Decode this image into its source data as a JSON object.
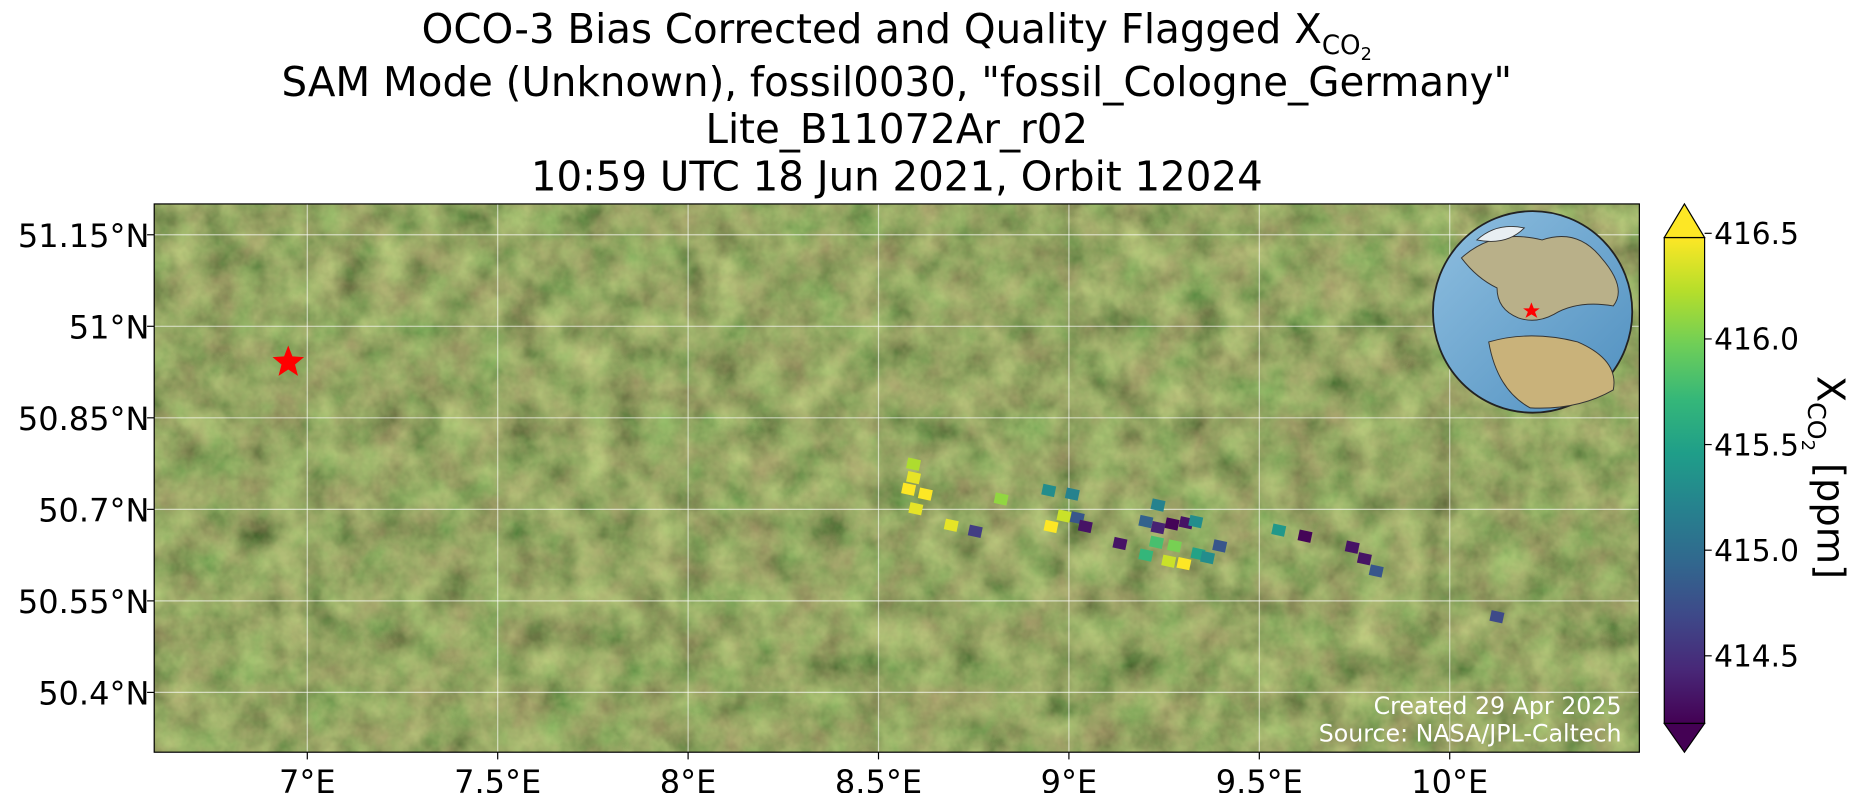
{
  "chart_data": {
    "type": "map",
    "title": {
      "line1": "OCO-3 Bias Corrected and Quality Flagged X",
      "line1_sub": "CO",
      "line1_subsub": "2",
      "line2": "SAM Mode (Unknown), fossil0030, \"fossil_Cologne_Germany\"",
      "line3": "Lite_B11072Ar_r02",
      "line4": "10:59 UTC 18 Jun 2021, Orbit 12024"
    },
    "xlim": [
      6.598,
      10.498
    ],
    "ylim": [
      50.302,
      51.2005
    ],
    "xticks": [
      {
        "value": 7,
        "label": "7°E"
      },
      {
        "value": 7.5,
        "label": "7.5°E"
      },
      {
        "value": 8,
        "label": "8°E"
      },
      {
        "value": 8.5,
        "label": "8.5°E"
      },
      {
        "value": 9,
        "label": "9°E"
      },
      {
        "value": 9.5,
        "label": "9.5°E"
      },
      {
        "value": 10,
        "label": "10°E"
      }
    ],
    "yticks": [
      {
        "value": 50.4,
        "label": "50.4°N"
      },
      {
        "value": 50.55,
        "label": "50.55°N"
      },
      {
        "value": 50.7,
        "label": "50.7°N"
      },
      {
        "value": 50.85,
        "label": "50.85°N"
      },
      {
        "value": 51,
        "label": "51°N"
      },
      {
        "value": 51.15,
        "label": "51.15°N"
      }
    ],
    "grid": true,
    "site": {
      "lon": 6.95,
      "lat": 50.941,
      "color": "#ff0000"
    },
    "x": [
      8.592,
      8.592,
      8.579,
      8.623,
      8.598,
      8.691,
      8.754,
      8.822,
      8.947,
      9.009,
      8.953,
      8.987,
      9.022,
      9.043,
      9.134,
      9.202,
      9.234,
      9.234,
      9.271,
      9.308,
      9.333,
      9.202,
      9.23,
      9.277,
      9.262,
      9.302,
      9.339,
      9.364,
      9.396,
      9.551,
      9.62,
      9.744,
      9.776,
      9.807,
      10.124
    ],
    "y": [
      50.774,
      50.752,
      50.733,
      50.725,
      50.701,
      50.674,
      50.664,
      50.717,
      50.731,
      50.725,
      50.672,
      50.689,
      50.686,
      50.672,
      50.644,
      50.68,
      50.707,
      50.67,
      50.676,
      50.678,
      50.68,
      50.625,
      50.646,
      50.64,
      50.615,
      50.611,
      50.627,
      50.621,
      50.64,
      50.666,
      50.656,
      50.638,
      50.619,
      50.599,
      50.524
    ],
    "values": [
      416.2,
      416.4,
      416.5,
      416.5,
      416.4,
      416.4,
      414.6,
      416.1,
      415.3,
      415.2,
      416.5,
      416.3,
      414.8,
      414.3,
      414.3,
      414.9,
      415.2,
      414.4,
      414.2,
      414.3,
      415.3,
      415.7,
      415.8,
      416.0,
      416.3,
      416.5,
      415.5,
      415.3,
      414.8,
      415.4,
      414.2,
      414.3,
      414.3,
      414.8,
      414.7
    ],
    "colormap": "viridis",
    "clim": [
      414.18,
      416.48
    ],
    "cticks": [
      414.5,
      {
        "value": 415,
        "label": "415.0"
      },
      415.5,
      {
        "value": 416,
        "label": "416.0"
      },
      416.5
    ],
    "colorbar_label": {
      "main": "X",
      "sub": "CO",
      "subsub": "2",
      "unit": "[ppm]"
    },
    "credits": {
      "created": "Created 29 Apr 2025",
      "source": "Source: NASA/JPL-Caltech"
    }
  }
}
